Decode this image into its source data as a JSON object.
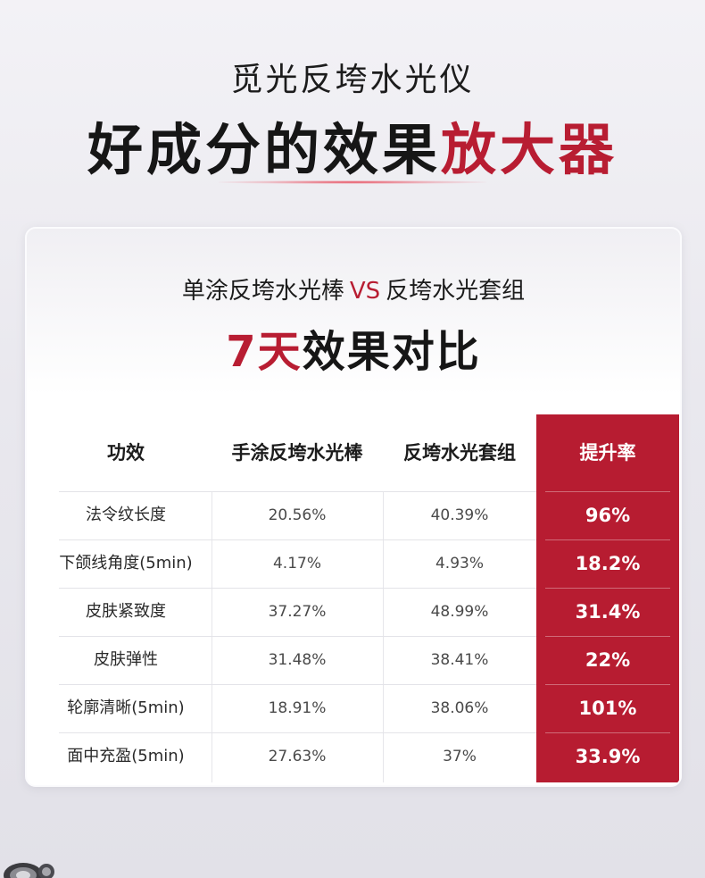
{
  "header": {
    "subtitle": "觅光反垮水光仪",
    "title_main": "好成分的效果",
    "title_accent": "放大器"
  },
  "card": {
    "sub_left": "单涂反垮水光棒",
    "sub_vs": "VS",
    "sub_right": "反垮水光套组",
    "title_accent": "7天",
    "title_main": "效果对比"
  },
  "table": {
    "headers": [
      "功效",
      "手涂反垮水光棒",
      "反垮水光套组",
      "提升率"
    ],
    "rows": [
      {
        "name": "法令纹长度",
        "single": "20.56%",
        "set": "40.39%",
        "rate": "96%"
      },
      {
        "name": "下颌线角度(5min)",
        "single": "4.17%",
        "set": "4.93%",
        "rate": "18.2%"
      },
      {
        "name": "皮肤紧致度",
        "single": "37.27%",
        "set": "48.99%",
        "rate": "31.4%"
      },
      {
        "name": "皮肤弹性",
        "single": "31.48%",
        "set": "38.41%",
        "rate": "22%"
      },
      {
        "name": "轮廓清晰(5min)",
        "single": "18.91%",
        "set": "38.06%",
        "rate": "101%"
      },
      {
        "name": "面中充盈(5min)",
        "single": "27.63%",
        "set": "37%",
        "rate": "33.9%"
      }
    ]
  },
  "colors": {
    "accent": "#b81d32",
    "highlight_column": "#b71c31"
  }
}
